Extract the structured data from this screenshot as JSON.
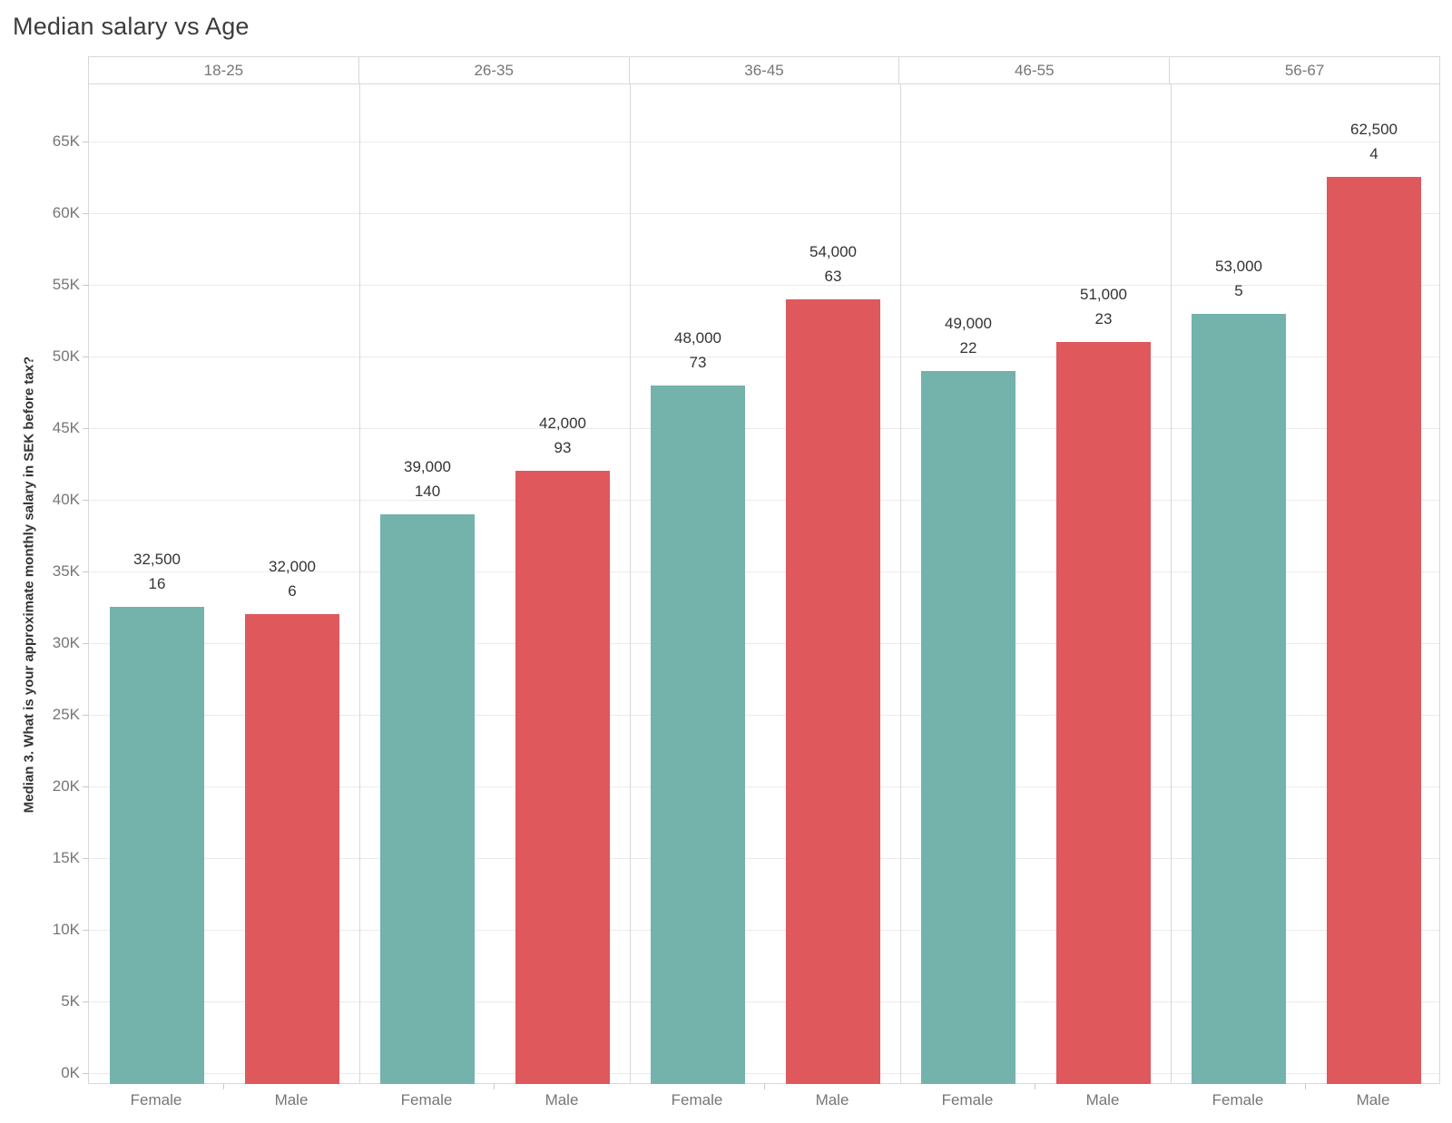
{
  "title": "Median salary vs Age",
  "y_axis_title": "Median 3. What is your approximate monthly salary in SEK before tax?",
  "colors": {
    "female_bar": "#74b2ac",
    "male_bar": "#df585c",
    "grid": "#ebebeb",
    "border": "#d8d8d8",
    "tick_text": "#767676",
    "label_text": "#333333",
    "title_text": "#3c3c3c"
  },
  "chart_data": {
    "type": "bar",
    "title": "Median salary vs Age",
    "xlabel": "",
    "ylabel": "Median 3. What is your approximate monthly salary in SEK before tax?",
    "ylim": [
      0,
      69000
    ],
    "ytick_step": 5000,
    "ytick_labels": [
      "0K",
      "5K",
      "10K",
      "15K",
      "20K",
      "25K",
      "30K",
      "35K",
      "40K",
      "45K",
      "50K",
      "55K",
      "60K",
      "65K"
    ],
    "grid": true,
    "legend": "none",
    "panel_headers": [
      "18-25",
      "26-35",
      "36-45",
      "46-55",
      "56-67"
    ],
    "x_category_labels": [
      "Female",
      "Male"
    ],
    "series": [
      {
        "name": "Female",
        "color": "#74b2ac",
        "values": [
          32500,
          39000,
          48000,
          49000,
          53000
        ],
        "value_labels": [
          "32,500",
          "39,000",
          "48,000",
          "49,000",
          "53,000"
        ],
        "counts": [
          16,
          140,
          73,
          22,
          5
        ]
      },
      {
        "name": "Male",
        "color": "#df585c",
        "values": [
          32000,
          42000,
          54000,
          51000,
          62500
        ],
        "value_labels": [
          "32,000",
          "42,000",
          "54,000",
          "51,000",
          "62,500"
        ],
        "counts": [
          6,
          93,
          63,
          23,
          4
        ]
      }
    ]
  }
}
